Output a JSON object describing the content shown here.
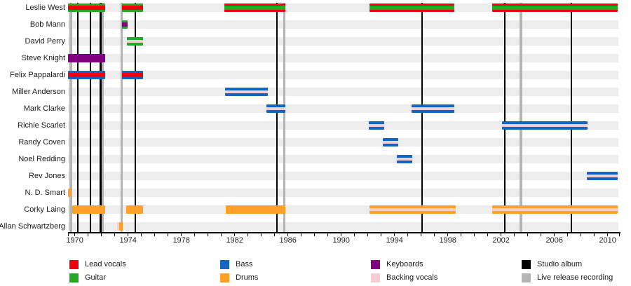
{
  "chart_data": {
    "type": "timeline",
    "title": "",
    "x_axis": {
      "tick_labels": [
        "1970",
        "1974",
        "1978",
        "1982",
        "1986",
        "1990",
        "1994",
        "1998",
        "2002",
        "2006",
        "2010"
      ],
      "minor_tick_interval_years": 1,
      "minor_tick_start": 1970,
      "minor_tick_end": 2010,
      "start_year": 1969.5,
      "end_year": 2010.9
    },
    "palette": {
      "lead_vocals": "#ee0011",
      "guitar": "#22aa22",
      "bass": "#1565c0",
      "drums": "#ffa126",
      "keyboards": "#800080",
      "backing_vocals": "#f5cdd5",
      "studio_album": "#000000",
      "live_release_recording": "#b4b4b4",
      "row_track": "#ededed"
    },
    "members": [
      {
        "name": "Leslie West",
        "bars": [
          {
            "start": 1969.5,
            "end": 1972.28,
            "stripes": [
              "guitar",
              "lead_vocals",
              "guitar"
            ]
          },
          {
            "start": 1973.54,
            "end": 1975.12,
            "stripes": [
              "guitar",
              "lead_vocals",
              "guitar"
            ]
          },
          {
            "start": 1981.23,
            "end": 1985.81,
            "stripes": [
              "lead_vocals",
              "guitar",
              "lead_vocals"
            ]
          },
          {
            "start": 1992.12,
            "end": 1998.49,
            "stripes": [
              "lead_vocals",
              "guitar",
              "lead_vocals"
            ]
          },
          {
            "start": 2001.33,
            "end": 2010.75,
            "stripes": [
              "lead_vocals",
              "guitar",
              "lead_vocals"
            ]
          }
        ]
      },
      {
        "name": "Bob Mann",
        "bars": [
          {
            "start": 1973.52,
            "end": 1973.94,
            "stripes": [
              "guitar",
              "keyboards",
              "guitar"
            ]
          }
        ]
      },
      {
        "name": "David Perry",
        "bars": [
          {
            "start": 1973.9,
            "end": 1975.12,
            "stripes": [
              "guitar",
              "backing_vocals",
              "guitar"
            ]
          }
        ]
      },
      {
        "name": "Steve Knight",
        "bars": [
          {
            "start": 1969.5,
            "end": 1972.28,
            "stripes": [
              "keyboards"
            ]
          }
        ]
      },
      {
        "name": "Felix Pappalardi",
        "bars": [
          {
            "start": 1969.5,
            "end": 1972.28,
            "stripes": [
              "bass",
              "lead_vocals",
              "bass"
            ]
          },
          {
            "start": 1973.54,
            "end": 1975.12,
            "stripes": [
              "bass",
              "lead_vocals",
              "bass"
            ]
          }
        ]
      },
      {
        "name": "Miller Anderson",
        "bars": [
          {
            "start": 1981.28,
            "end": 1984.49,
            "stripes": [
              "bass",
              "backing_vocals",
              "bass"
            ]
          }
        ]
      },
      {
        "name": "Mark Clarke",
        "bars": [
          {
            "start": 1984.38,
            "end": 1985.81,
            "stripes": [
              "bass",
              "backing_vocals",
              "bass"
            ]
          },
          {
            "start": 1995.28,
            "end": 1998.49,
            "stripes": [
              "bass",
              "backing_vocals",
              "bass"
            ]
          }
        ]
      },
      {
        "name": "Richie Scarlet",
        "bars": [
          {
            "start": 1992.07,
            "end": 1993.23,
            "stripes": [
              "bass",
              "backing_vocals",
              "bass"
            ]
          },
          {
            "start": 2002.07,
            "end": 2008.49,
            "stripes": [
              "bass",
              "backing_vocals",
              "bass"
            ]
          }
        ]
      },
      {
        "name": "Randy Coven",
        "bars": [
          {
            "start": 1993.12,
            "end": 1994.28,
            "stripes": [
              "bass",
              "backing_vocals",
              "bass"
            ]
          }
        ]
      },
      {
        "name": "Noel Redding",
        "bars": [
          {
            "start": 1994.17,
            "end": 1995.33,
            "stripes": [
              "bass",
              "backing_vocals",
              "bass"
            ]
          }
        ]
      },
      {
        "name": "Rev Jones",
        "bars": [
          {
            "start": 2008.44,
            "end": 2010.75,
            "stripes": [
              "bass",
              "backing_vocals",
              "bass"
            ]
          }
        ]
      },
      {
        "name": "N. D. Smart",
        "bars": [
          {
            "start": 1969.5,
            "end": 1969.75,
            "stripes": [
              "drums"
            ]
          }
        ]
      },
      {
        "name": "Corky Laing",
        "bars": [
          {
            "start": 1969.81,
            "end": 1972.28,
            "stripes": [
              "drums"
            ]
          },
          {
            "start": 1973.88,
            "end": 1975.12,
            "stripes": [
              "drums"
            ]
          },
          {
            "start": 1981.33,
            "end": 1985.81,
            "stripes": [
              "drums"
            ]
          },
          {
            "start": 1992.12,
            "end": 1998.6,
            "stripes": [
              "drums",
              "backing_vocals",
              "drums"
            ]
          },
          {
            "start": 2001.33,
            "end": 2010.75,
            "stripes": [
              "drums",
              "backing_vocals",
              "drums"
            ]
          }
        ]
      },
      {
        "name": "Allan Schwartzberg",
        "bars": [
          {
            "start": 1973.17,
            "end": 1973.33,
            "stripes": [
              "backing_vocals"
            ]
          },
          {
            "start": 1973.33,
            "end": 1973.59,
            "stripes": [
              "drums"
            ]
          }
        ]
      }
    ],
    "events": {
      "studio_albums": [
        1970.23,
        1971.17,
        1971.94,
        1974.54,
        1985.18,
        1996.07,
        2002.28,
        2007.28
      ],
      "live_release_recordings": [
        1969.7,
        1972.09,
        1973.52,
        1985.73,
        2003.49
      ]
    },
    "legend": {
      "columns": [
        [
          {
            "label": "Lead vocals",
            "role": "lead_vocals"
          },
          {
            "label": "Guitar",
            "role": "guitar"
          }
        ],
        [
          {
            "label": "Bass",
            "role": "bass"
          },
          {
            "label": "Drums",
            "role": "drums"
          }
        ],
        [
          {
            "label": "Keyboards",
            "role": "keyboards"
          },
          {
            "label": "Backing vocals",
            "role": "backing_vocals"
          }
        ],
        [
          {
            "label": "Studio album",
            "role": "studio_album"
          },
          {
            "label": "Live release recording",
            "role": "live_release_recording"
          }
        ]
      ]
    }
  }
}
